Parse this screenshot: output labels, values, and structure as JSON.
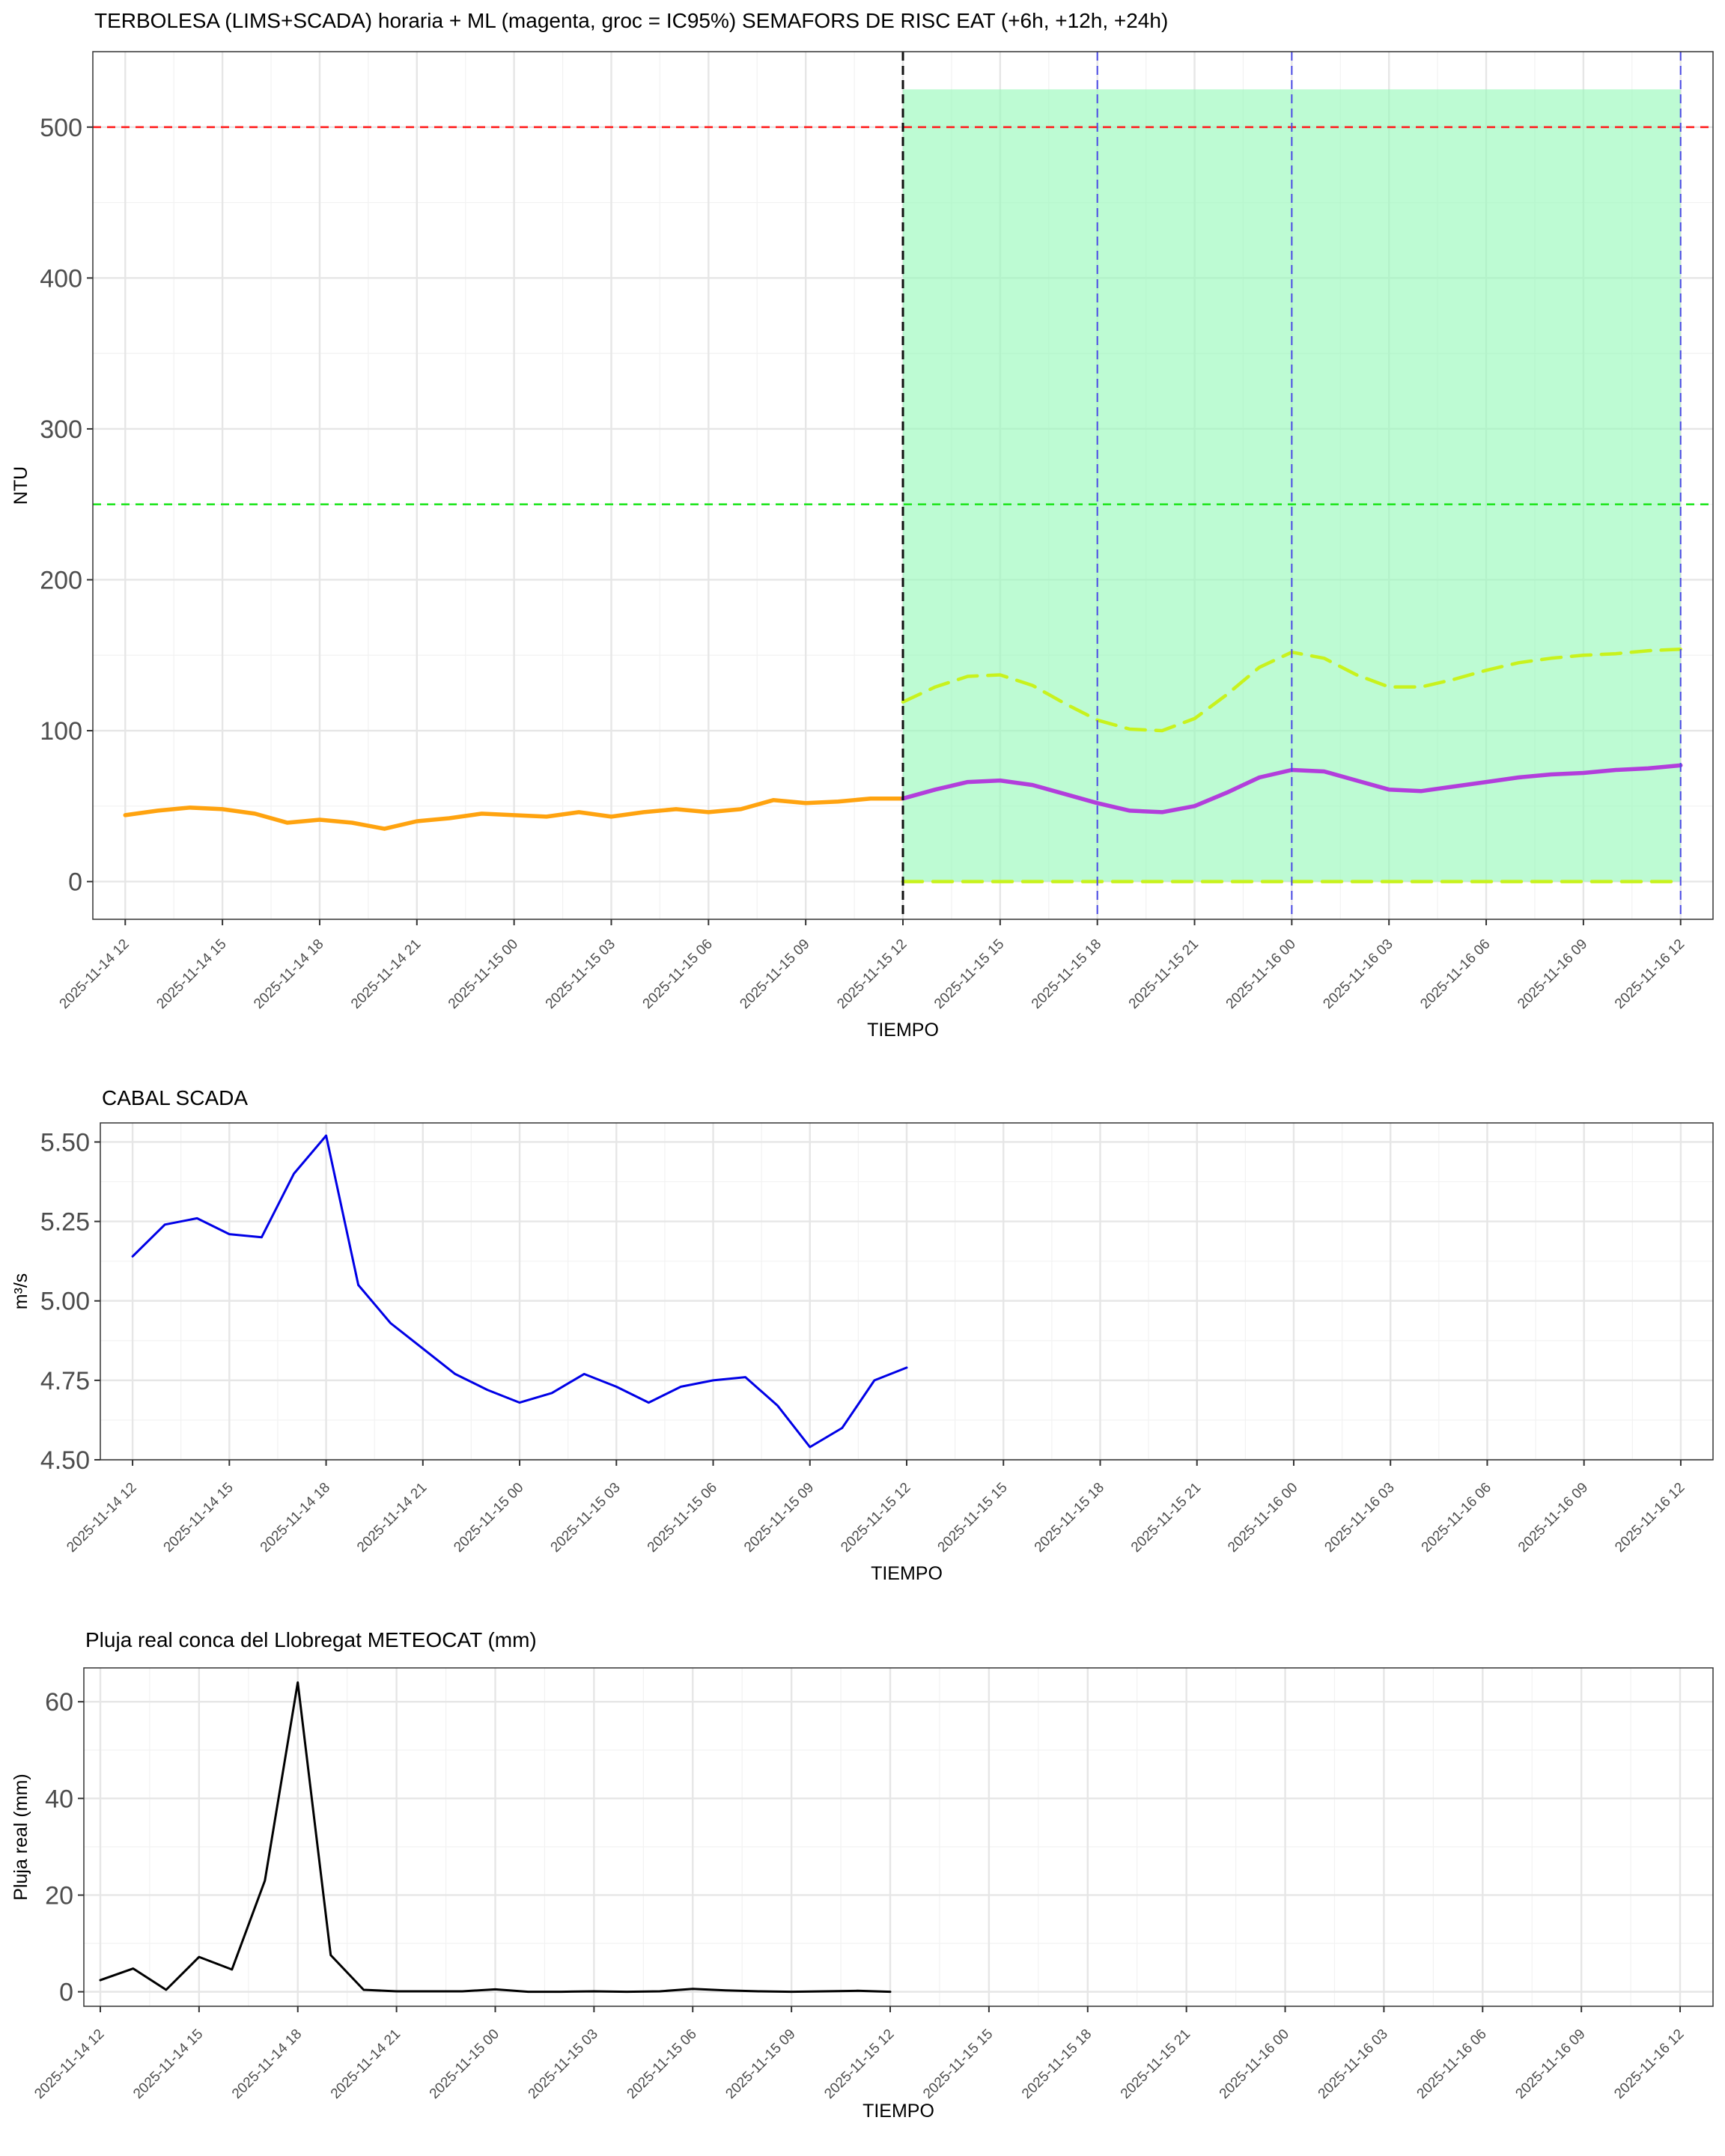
{
  "colors": {
    "observed": "#FFA30F",
    "prediction": "#B23EDB",
    "ci": "#C8F21D",
    "ci_band": "#94F8B8",
    "threshold_red": "#FF2020",
    "threshold_green": "#20E520",
    "marker_black": "#111111",
    "marker_blue": "#4B4BE6",
    "flow": "#0000E6",
    "rain": "#000000"
  },
  "charts": [
    {
      "id": "turbidity",
      "title": "TERBOLESA (LIMS+SCADA) horaria + ML (magenta, groc = IC95%) SEMAFORS DE RISC EAT (+6h, +12h, +24h)",
      "xlabel": "TIEMPO",
      "ylabel": "NTU",
      "yticks": [
        "0",
        "100",
        "200",
        "300",
        "400",
        "500"
      ],
      "xticks": [
        "2025-11-14 12",
        "2025-11-14 15",
        "2025-11-14 18",
        "2025-11-14 21",
        "2025-11-15 00",
        "2025-11-15 03",
        "2025-11-15 06",
        "2025-11-15 09",
        "2025-11-15 12",
        "2025-11-15 15",
        "2025-11-15 18",
        "2025-11-15 21",
        "2025-11-16 00",
        "2025-11-16 03",
        "2025-11-16 06",
        "2025-11-16 09",
        "2025-11-16 12"
      ]
    },
    {
      "id": "flow",
      "title": "CABAL SCADA",
      "xlabel": "TIEMPO",
      "ylabel": "m³/s",
      "yticks": [
        "4.50",
        "4.75",
        "5.00",
        "5.25",
        "5.50"
      ],
      "xticks": [
        "2025-11-14 12",
        "2025-11-14 15",
        "2025-11-14 18",
        "2025-11-14 21",
        "2025-11-15 00",
        "2025-11-15 03",
        "2025-11-15 06",
        "2025-11-15 09",
        "2025-11-15 12",
        "2025-11-15 15",
        "2025-11-15 18",
        "2025-11-15 21",
        "2025-11-16 00",
        "2025-11-16 03",
        "2025-11-16 06",
        "2025-11-16 09",
        "2025-11-16 12"
      ]
    },
    {
      "id": "rain",
      "title": "Pluja real conca del Llobregat METEOCAT (mm)",
      "xlabel": "TIEMPO",
      "ylabel": "Pluja real (mm)",
      "yticks": [
        "0",
        "20",
        "40",
        "60"
      ],
      "xticks": [
        "2025-11-14 12",
        "2025-11-14 15",
        "2025-11-14 18",
        "2025-11-14 21",
        "2025-11-15 00",
        "2025-11-15 03",
        "2025-11-15 06",
        "2025-11-15 09",
        "2025-11-15 12",
        "2025-11-15 15",
        "2025-11-15 18",
        "2025-11-15 21",
        "2025-11-16 00",
        "2025-11-16 03",
        "2025-11-16 06",
        "2025-11-16 09",
        "2025-11-16 12"
      ]
    }
  ],
  "chart_data": [
    {
      "type": "line",
      "title": "TERBOLESA (LIMS+SCADA) horaria + ML (magenta, groc = IC95%) SEMAFORS DE RISC EAT (+6h, +12h, +24h)",
      "xlabel": "TIEMPO",
      "ylabel": "NTU",
      "x_type": "datetime-hourly",
      "xlim": [
        "2025-11-14 11:00",
        "2025-11-16 13:00"
      ],
      "ylim": [
        -25,
        550
      ],
      "grid": true,
      "legend": "none",
      "reference_lines": [
        {
          "axis": "y",
          "value": 500,
          "color": "red",
          "style": "dashed"
        },
        {
          "axis": "y",
          "value": 250,
          "color": "green",
          "style": "dashed"
        },
        {
          "axis": "x",
          "value": "2025-11-15 12",
          "color": "black",
          "style": "dashed"
        },
        {
          "axis": "x",
          "value": "2025-11-15 18",
          "color": "blue",
          "style": "dashed"
        },
        {
          "axis": "x",
          "value": "2025-11-16 00",
          "color": "blue",
          "style": "dashed"
        },
        {
          "axis": "x",
          "value": "2025-11-16 12",
          "color": "blue",
          "style": "dashed"
        }
      ],
      "shaded_region": {
        "x_from": "2025-11-15 12",
        "x_to": "2025-11-16 12",
        "y_from": 0,
        "y_to": 525,
        "color": "green"
      },
      "series": [
        {
          "role": "observed",
          "x": [
            "2025-11-14 12",
            "2025-11-14 13",
            "2025-11-14 14",
            "2025-11-14 15",
            "2025-11-14 16",
            "2025-11-14 17",
            "2025-11-14 18",
            "2025-11-14 19",
            "2025-11-14 20",
            "2025-11-14 21",
            "2025-11-14 22",
            "2025-11-14 23",
            "2025-11-15 00",
            "2025-11-15 01",
            "2025-11-15 02",
            "2025-11-15 03",
            "2025-11-15 04",
            "2025-11-15 05",
            "2025-11-15 06",
            "2025-11-15 07",
            "2025-11-15 08",
            "2025-11-15 09",
            "2025-11-15 10",
            "2025-11-15 11",
            "2025-11-15 12"
          ],
          "values": [
            44,
            47,
            49,
            48,
            45,
            39,
            41,
            39,
            35,
            40,
            42,
            45,
            44,
            43,
            46,
            43,
            46,
            48,
            46,
            48,
            54,
            52,
            53,
            55,
            55
          ]
        },
        {
          "role": "prediction",
          "x": [
            "2025-11-15 12",
            "2025-11-15 13",
            "2025-11-15 14",
            "2025-11-15 15",
            "2025-11-15 16",
            "2025-11-15 17",
            "2025-11-15 18",
            "2025-11-15 19",
            "2025-11-15 20",
            "2025-11-15 21",
            "2025-11-15 22",
            "2025-11-15 23",
            "2025-11-16 00",
            "2025-11-16 01",
            "2025-11-16 02",
            "2025-11-16 03",
            "2025-11-16 04",
            "2025-11-16 05",
            "2025-11-16 06",
            "2025-11-16 07",
            "2025-11-16 08",
            "2025-11-16 09",
            "2025-11-16 10",
            "2025-11-16 11",
            "2025-11-16 12"
          ],
          "values": [
            55,
            61,
            66,
            67,
            64,
            58,
            52,
            47,
            46,
            50,
            59,
            69,
            74,
            73,
            67,
            61,
            60,
            63,
            66,
            69,
            71,
            72,
            74,
            75,
            77
          ]
        },
        {
          "role": "ci_upper",
          "x": [
            "2025-11-15 12",
            "2025-11-15 13",
            "2025-11-15 14",
            "2025-11-15 15",
            "2025-11-15 16",
            "2025-11-15 17",
            "2025-11-15 18",
            "2025-11-15 19",
            "2025-11-15 20",
            "2025-11-15 21",
            "2025-11-15 22",
            "2025-11-15 23",
            "2025-11-16 00",
            "2025-11-16 01",
            "2025-11-16 02",
            "2025-11-16 03",
            "2025-11-16 04",
            "2025-11-16 05",
            "2025-11-16 06",
            "2025-11-16 07",
            "2025-11-16 08",
            "2025-11-16 09",
            "2025-11-16 10",
            "2025-11-16 11",
            "2025-11-16 12"
          ],
          "values": [
            119,
            129,
            136,
            137,
            130,
            118,
            107,
            101,
            100,
            108,
            124,
            142,
            152,
            148,
            137,
            129,
            129,
            134,
            140,
            145,
            148,
            150,
            151,
            153,
            154
          ]
        },
        {
          "role": "ci_lower",
          "x": [
            "2025-11-15 12",
            "2025-11-16 12"
          ],
          "values": [
            0,
            0
          ]
        }
      ]
    },
    {
      "type": "line",
      "title": "CABAL SCADA",
      "xlabel": "TIEMPO",
      "ylabel": "m³/s",
      "x_type": "datetime-hourly",
      "xlim": [
        "2025-11-14 11:00",
        "2025-11-16 13:00"
      ],
      "ylim": [
        4.5,
        5.56
      ],
      "grid": true,
      "legend": "none",
      "series": [
        {
          "x": [
            "2025-11-14 12",
            "2025-11-14 13",
            "2025-11-14 14",
            "2025-11-14 15",
            "2025-11-14 16",
            "2025-11-14 17",
            "2025-11-14 18",
            "2025-11-14 19",
            "2025-11-14 20",
            "2025-11-14 21",
            "2025-11-14 22",
            "2025-11-14 23",
            "2025-11-15 00",
            "2025-11-15 01",
            "2025-11-15 02",
            "2025-11-15 03",
            "2025-11-15 04",
            "2025-11-15 05",
            "2025-11-15 06",
            "2025-11-15 07",
            "2025-11-15 08",
            "2025-11-15 09",
            "2025-11-15 10",
            "2025-11-15 11",
            "2025-11-15 12"
          ],
          "values": [
            5.14,
            5.24,
            5.26,
            5.21,
            5.2,
            5.4,
            5.52,
            5.05,
            4.93,
            4.85,
            4.77,
            4.72,
            4.68,
            4.71,
            4.77,
            4.73,
            4.68,
            4.73,
            4.75,
            4.76,
            4.67,
            4.54,
            4.6,
            4.75,
            4.79
          ]
        }
      ]
    },
    {
      "type": "line",
      "title": "Pluja real conca del Llobregat METEOCAT (mm)",
      "xlabel": "TIEMPO",
      "ylabel": "Pluja real (mm)",
      "x_type": "datetime-hourly",
      "xlim": [
        "2025-11-14 11:30",
        "2025-11-16 13:00"
      ],
      "ylim": [
        -3,
        67
      ],
      "grid": true,
      "legend": "none",
      "series": [
        {
          "x": [
            "2025-11-14 12",
            "2025-11-14 13",
            "2025-11-14 14",
            "2025-11-14 15",
            "2025-11-14 16",
            "2025-11-14 17",
            "2025-11-14 18",
            "2025-11-14 19",
            "2025-11-14 20",
            "2025-11-14 21",
            "2025-11-14 22",
            "2025-11-14 23",
            "2025-11-15 00",
            "2025-11-15 01",
            "2025-11-15 02",
            "2025-11-15 03",
            "2025-11-15 04",
            "2025-11-15 05",
            "2025-11-15 06",
            "2025-11-15 07",
            "2025-11-15 08",
            "2025-11-15 09",
            "2025-11-15 10",
            "2025-11-15 11",
            "2025-11-15 12"
          ],
          "values": [
            2.4,
            4.8,
            0.4,
            7.2,
            4.6,
            23,
            64,
            7.6,
            0.4,
            0.1,
            0.1,
            0.1,
            0.5,
            0,
            0,
            0.1,
            0,
            0.1,
            0.6,
            0.3,
            0.1,
            0,
            0.1,
            0.2,
            0
          ]
        }
      ]
    }
  ]
}
